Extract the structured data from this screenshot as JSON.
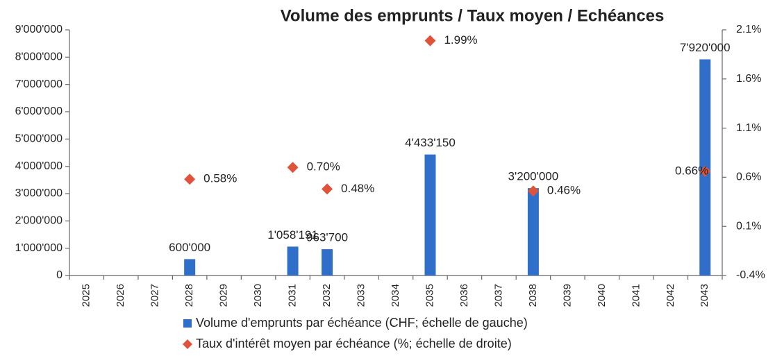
{
  "chart_data": {
    "type": "bar",
    "title": "Volume des emprunts / Taux moyen / Echéances",
    "categories": [
      "2025",
      "2026",
      "2027",
      "2028",
      "2029",
      "2030",
      "2031",
      "2032",
      "2033",
      "2034",
      "2035",
      "2036",
      "2037",
      "2038",
      "2039",
      "2040",
      "2041",
      "2042",
      "2043"
    ],
    "series": [
      {
        "name": "Volume d'emprunts par échéance (CHF; échelle de gauche)",
        "type": "bar",
        "color": "#2f6fca",
        "values": [
          null,
          null,
          null,
          600000,
          null,
          null,
          1058191,
          963700,
          null,
          null,
          4433150,
          null,
          null,
          3200000,
          null,
          null,
          null,
          null,
          7920000
        ],
        "value_labels": [
          null,
          null,
          null,
          "600'000",
          null,
          null,
          "1'058'191",
          "963'700",
          null,
          null,
          "4'433'150",
          null,
          null,
          "3'200'000",
          null,
          null,
          null,
          null,
          "7'920'000"
        ]
      },
      {
        "name": "Taux d'intérêt moyen par échéance (%; échelle de droite)",
        "type": "scatter",
        "marker": "diamond",
        "axis": "y2",
        "color": "#e0533b",
        "values": [
          null,
          null,
          null,
          0.58,
          null,
          null,
          0.7,
          0.48,
          null,
          null,
          1.99,
          null,
          null,
          0.46,
          null,
          null,
          null,
          null,
          0.66
        ],
        "value_labels": [
          null,
          null,
          null,
          "0.58%",
          null,
          null,
          "0.70%",
          "0.48%",
          null,
          null,
          "1.99%",
          null,
          null,
          "0.46%",
          null,
          null,
          null,
          null,
          "0.66%"
        ]
      }
    ],
    "ylim": [
      0,
      9000000
    ],
    "yticks": [
      0,
      {
        "value": 1000000,
        "label": "1'000'000"
      },
      {
        "value": 2000000,
        "label": "2'000'000"
      },
      {
        "value": 3000000,
        "label": "3'000'000"
      },
      {
        "value": 4000000,
        "label": "4'000'000"
      },
      {
        "value": 5000000,
        "label": "5'000'000"
      },
      {
        "value": 6000000,
        "label": "6'000'000"
      },
      {
        "value": 7000000,
        "label": "7'000'000"
      },
      {
        "value": 8000000,
        "label": "8'000'000"
      },
      {
        "value": 9000000,
        "label": "9'000'000"
      }
    ],
    "y2lim": [
      -0.4,
      2.1
    ],
    "y2ticks": [
      {
        "value": -0.4,
        "label": "-0.4%"
      },
      {
        "value": 0.1,
        "label": "0.1%"
      },
      {
        "value": 0.6,
        "label": "0.6%"
      },
      {
        "value": 1.1,
        "label": "1.1%"
      },
      {
        "value": 1.6,
        "label": "1.6%"
      },
      {
        "value": 2.1,
        "label": "2.1%"
      }
    ],
    "grid": false
  }
}
